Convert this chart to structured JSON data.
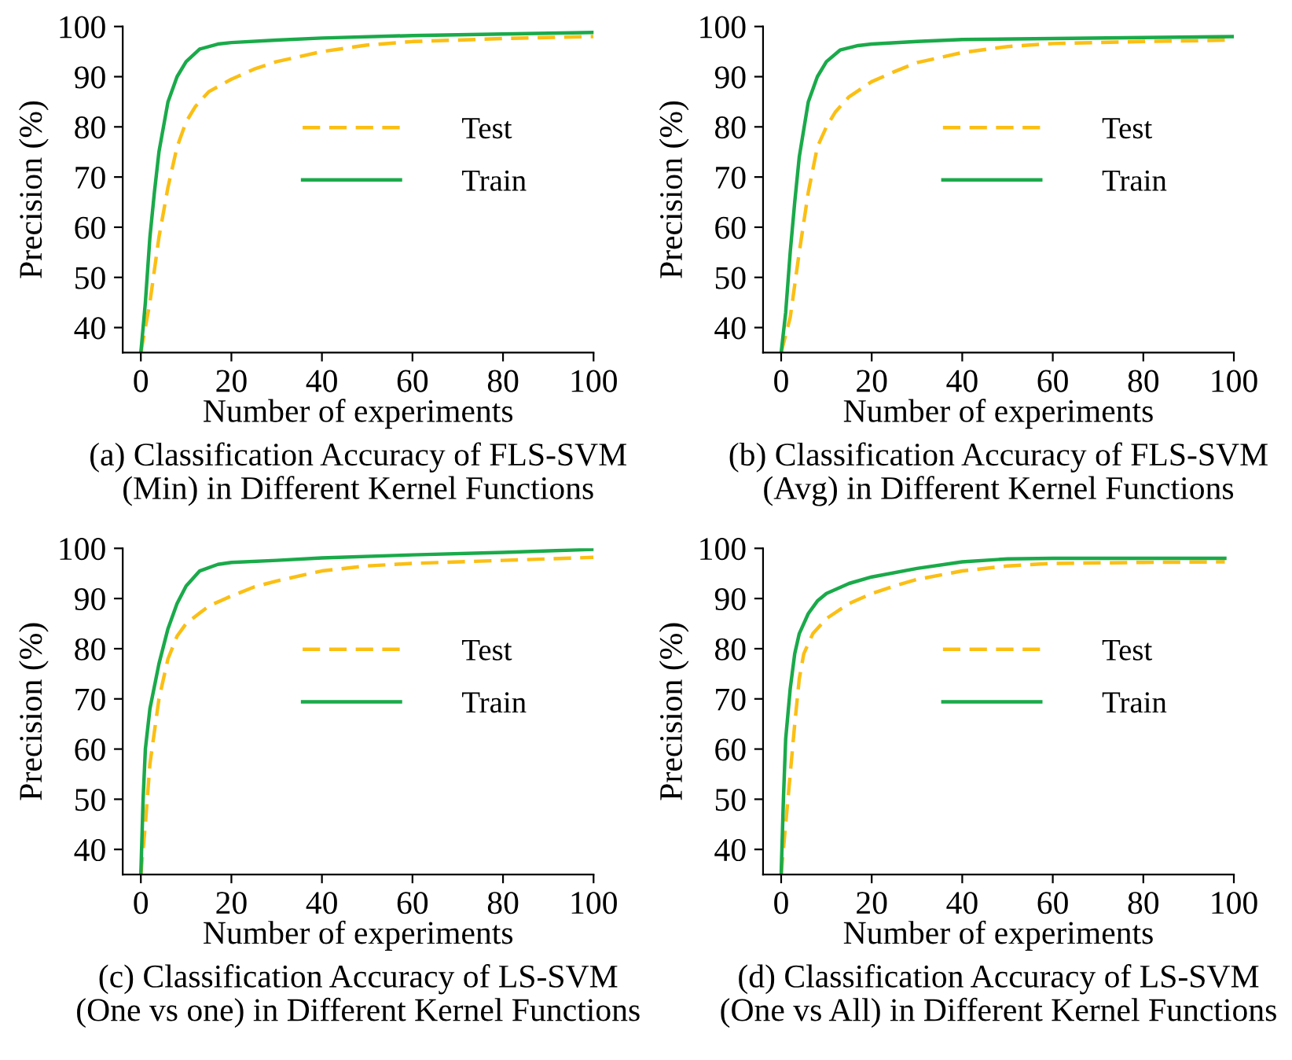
{
  "chart_data": [
    {
      "type": "line",
      "title": "(a) Classification Accuracy of FLS-SVM\n(Min) in Different Kernel Functions",
      "xlabel": "Number of experiments",
      "ylabel": "Precision (%)",
      "xlim": [
        -4,
        100
      ],
      "ylim": [
        35,
        100
      ],
      "xticks": [
        0,
        20,
        40,
        60,
        80,
        100
      ],
      "yticks": [
        40,
        50,
        60,
        70,
        80,
        90,
        100
      ],
      "grid": false,
      "legend": "center",
      "marker": "none",
      "series": [
        {
          "name": "Test",
          "color": "#fbbf14",
          "line_style": "dashed",
          "x": [
            0,
            2,
            4,
            6,
            8,
            10,
            12,
            15,
            20,
            25,
            30,
            40,
            50,
            60,
            80,
            100
          ],
          "values": [
            35,
            45,
            58,
            68,
            76,
            81,
            84,
            87,
            89.5,
            91.5,
            93,
            95,
            96.3,
            97,
            97.6,
            98
          ]
        },
        {
          "name": "Train",
          "color": "#1aaa4a",
          "line_style": "solid",
          "x": [
            0,
            1,
            2,
            3,
            4,
            6,
            8,
            10,
            13,
            17,
            20,
            30,
            40,
            60,
            80,
            100
          ],
          "values": [
            35,
            45,
            58,
            67,
            75,
            85,
            90,
            93,
            95.5,
            96.5,
            96.8,
            97.3,
            97.7,
            98.2,
            98.5,
            98.8
          ]
        }
      ]
    },
    {
      "type": "line",
      "title": "(b) Classification Accuracy of FLS-SVM\n(Avg) in Different Kernel Functions",
      "xlabel": "Number of experiments",
      "ylabel": "Precision (%)",
      "xlim": [
        -4,
        100
      ],
      "ylim": [
        35,
        100
      ],
      "xticks": [
        0,
        20,
        40,
        60,
        80,
        100
      ],
      "yticks": [
        40,
        50,
        60,
        70,
        80,
        90,
        100
      ],
      "grid": false,
      "legend": "center",
      "marker": "none",
      "series": [
        {
          "name": "Test",
          "color": "#fbbf14",
          "line_style": "dashed",
          "x": [
            0,
            2,
            4,
            6,
            8,
            10,
            12,
            15,
            20,
            25,
            30,
            40,
            50,
            60,
            80,
            100
          ],
          "values": [
            35,
            42,
            55,
            67,
            76,
            80,
            83,
            86,
            89,
            91,
            92.8,
            94.8,
            96,
            96.6,
            97,
            97.3
          ]
        },
        {
          "name": "Train",
          "color": "#1aaa4a",
          "line_style": "solid",
          "x": [
            0,
            1,
            2,
            3,
            4,
            6,
            8,
            10,
            13,
            17,
            20,
            30,
            40,
            60,
            80,
            100
          ],
          "values": [
            35,
            43,
            55,
            65,
            74,
            85,
            90,
            93,
            95.3,
            96.2,
            96.5,
            97,
            97.4,
            97.6,
            97.8,
            98
          ]
        }
      ]
    },
    {
      "type": "line",
      "title": "(c) Classification Accuracy of LS-SVM\n(One vs one) in Different Kernel Functions",
      "xlabel": "Number of experiments",
      "ylabel": "Precision (%)",
      "xlim": [
        -4,
        100
      ],
      "ylim": [
        35,
        100
      ],
      "xticks": [
        0,
        20,
        40,
        60,
        80,
        100
      ],
      "yticks": [
        40,
        50,
        60,
        70,
        80,
        90,
        100
      ],
      "grid": false,
      "legend": "center",
      "marker": "none",
      "series": [
        {
          "name": "Test",
          "color": "#fbbf14",
          "line_style": "dashed",
          "x": [
            0,
            1,
            2,
            4,
            6,
            8,
            10,
            15,
            20,
            25,
            30,
            40,
            50,
            60,
            80,
            100
          ],
          "values": [
            35,
            45,
            57,
            70,
            78,
            82.5,
            85,
            88.5,
            90.5,
            92.3,
            93.5,
            95.5,
            96.5,
            97,
            97.6,
            98.2
          ]
        },
        {
          "name": "Train",
          "color": "#1aaa4a",
          "line_style": "solid",
          "x": [
            0,
            0.5,
            1,
            2,
            4,
            6,
            8,
            10,
            13,
            17,
            20,
            30,
            40,
            60,
            80,
            100
          ],
          "values": [
            35,
            50,
            60,
            68,
            77,
            84,
            89,
            92.5,
            95.5,
            96.8,
            97.2,
            97.6,
            98.1,
            98.7,
            99.2,
            99.8
          ]
        }
      ]
    },
    {
      "type": "line",
      "title": "(d) Classification Accuracy of LS-SVM\n(One vs All) in Different Kernel Functions",
      "xlabel": "Number of experiments",
      "ylabel": "Precision (%)",
      "xlim": [
        -4,
        100
      ],
      "ylim": [
        35,
        100
      ],
      "xticks": [
        0,
        20,
        40,
        60,
        80,
        100
      ],
      "yticks": [
        40,
        50,
        60,
        70,
        80,
        90,
        100
      ],
      "grid": false,
      "legend": "center",
      "marker": "none",
      "series": [
        {
          "name": "Test",
          "color": "#fbbf14",
          "line_style": "dashed",
          "x": [
            0,
            1,
            2,
            3,
            4,
            5,
            7,
            10,
            15,
            20,
            25,
            30,
            40,
            50,
            60,
            80,
            98
          ],
          "values": [
            35,
            45,
            55,
            65,
            74,
            79,
            83,
            86,
            89,
            91,
            92.5,
            93.8,
            95.5,
            96.5,
            97,
            97.2,
            97.3
          ]
        },
        {
          "name": "Train",
          "color": "#1aaa4a",
          "line_style": "solid",
          "x": [
            0,
            0.5,
            1,
            2,
            3,
            4,
            6,
            8,
            10,
            15,
            20,
            30,
            40,
            50,
            60,
            80,
            98
          ],
          "values": [
            35,
            50,
            62,
            72,
            79,
            83,
            87,
            89.5,
            91,
            93,
            94.3,
            96,
            97.3,
            97.9,
            98,
            98,
            98
          ]
        }
      ]
    }
  ]
}
